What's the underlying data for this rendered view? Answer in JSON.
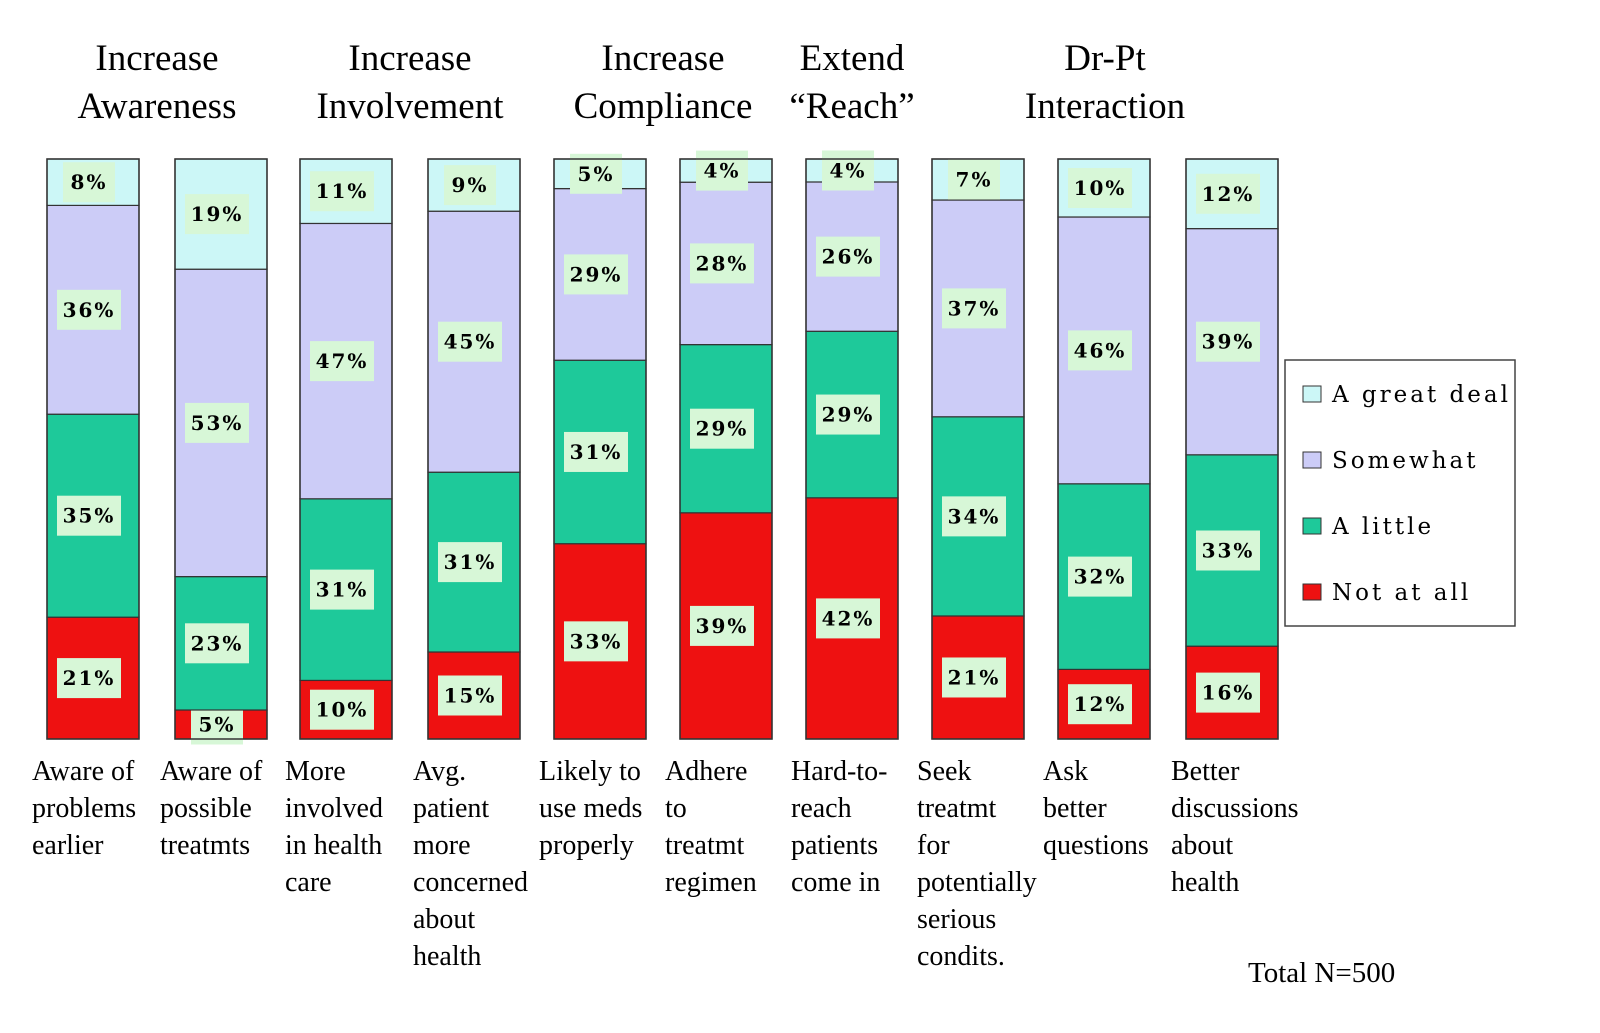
{
  "chart_data": {
    "type": "bar",
    "stacked": true,
    "percent": true,
    "groups": [
      {
        "title": [
          "Increase",
          "Awareness"
        ],
        "bars": [
          0,
          1
        ]
      },
      {
        "title": [
          "Increase",
          "Involvement"
        ],
        "bars": [
          2,
          3
        ]
      },
      {
        "title": [
          "Increase",
          "Compliance"
        ],
        "bars": [
          4,
          5
        ]
      },
      {
        "title": [
          "Extend",
          "“Reach”"
        ],
        "bars": [
          6
        ]
      },
      {
        "title": [
          "Dr-Pt",
          "Interaction"
        ],
        "bars": [
          7,
          8,
          9
        ]
      }
    ],
    "categories": [
      [
        "Aware of",
        "problems",
        "earlier"
      ],
      [
        "Aware of",
        "possible",
        "treatmts"
      ],
      [
        "More",
        "involved",
        "in health",
        "care"
      ],
      [
        "Avg.",
        "patient",
        "more",
        "concerned",
        "about",
        "health"
      ],
      [
        "Likely to",
        "use meds",
        "properly"
      ],
      [
        "Adhere",
        "to",
        "treatmt",
        "regimen"
      ],
      [
        "Hard-to-",
        "reach",
        "patients",
        "come in"
      ],
      [
        "Seek",
        "treatmt",
        "for",
        "potentially",
        "serious",
        "condits."
      ],
      [
        "Ask",
        "better",
        "questions"
      ],
      [
        "Better",
        "discussions",
        "about",
        "health"
      ]
    ],
    "series": [
      {
        "name": "Not at all",
        "color": "#ee1111",
        "values": [
          21,
          5,
          10,
          15,
          33,
          39,
          42,
          21,
          12,
          16
        ]
      },
      {
        "name": "A little",
        "color": "#1ec99a",
        "values": [
          35,
          23,
          31,
          31,
          31,
          29,
          29,
          34,
          32,
          33
        ]
      },
      {
        "name": "Somewhat",
        "color": "#ccccf7",
        "values": [
          36,
          53,
          47,
          45,
          29,
          28,
          26,
          37,
          46,
          39
        ]
      },
      {
        "name": "A great deal",
        "color": "#ccf7f7",
        "values": [
          8,
          19,
          11,
          9,
          5,
          4,
          4,
          7,
          10,
          12
        ]
      }
    ],
    "value_suffix": "%",
    "legend_order": [
      "A great deal",
      "Somewhat",
      "A little",
      "Not at all"
    ],
    "legend_position": "right",
    "label_box_color": "#d7f7d7",
    "note": "Total N=500"
  }
}
